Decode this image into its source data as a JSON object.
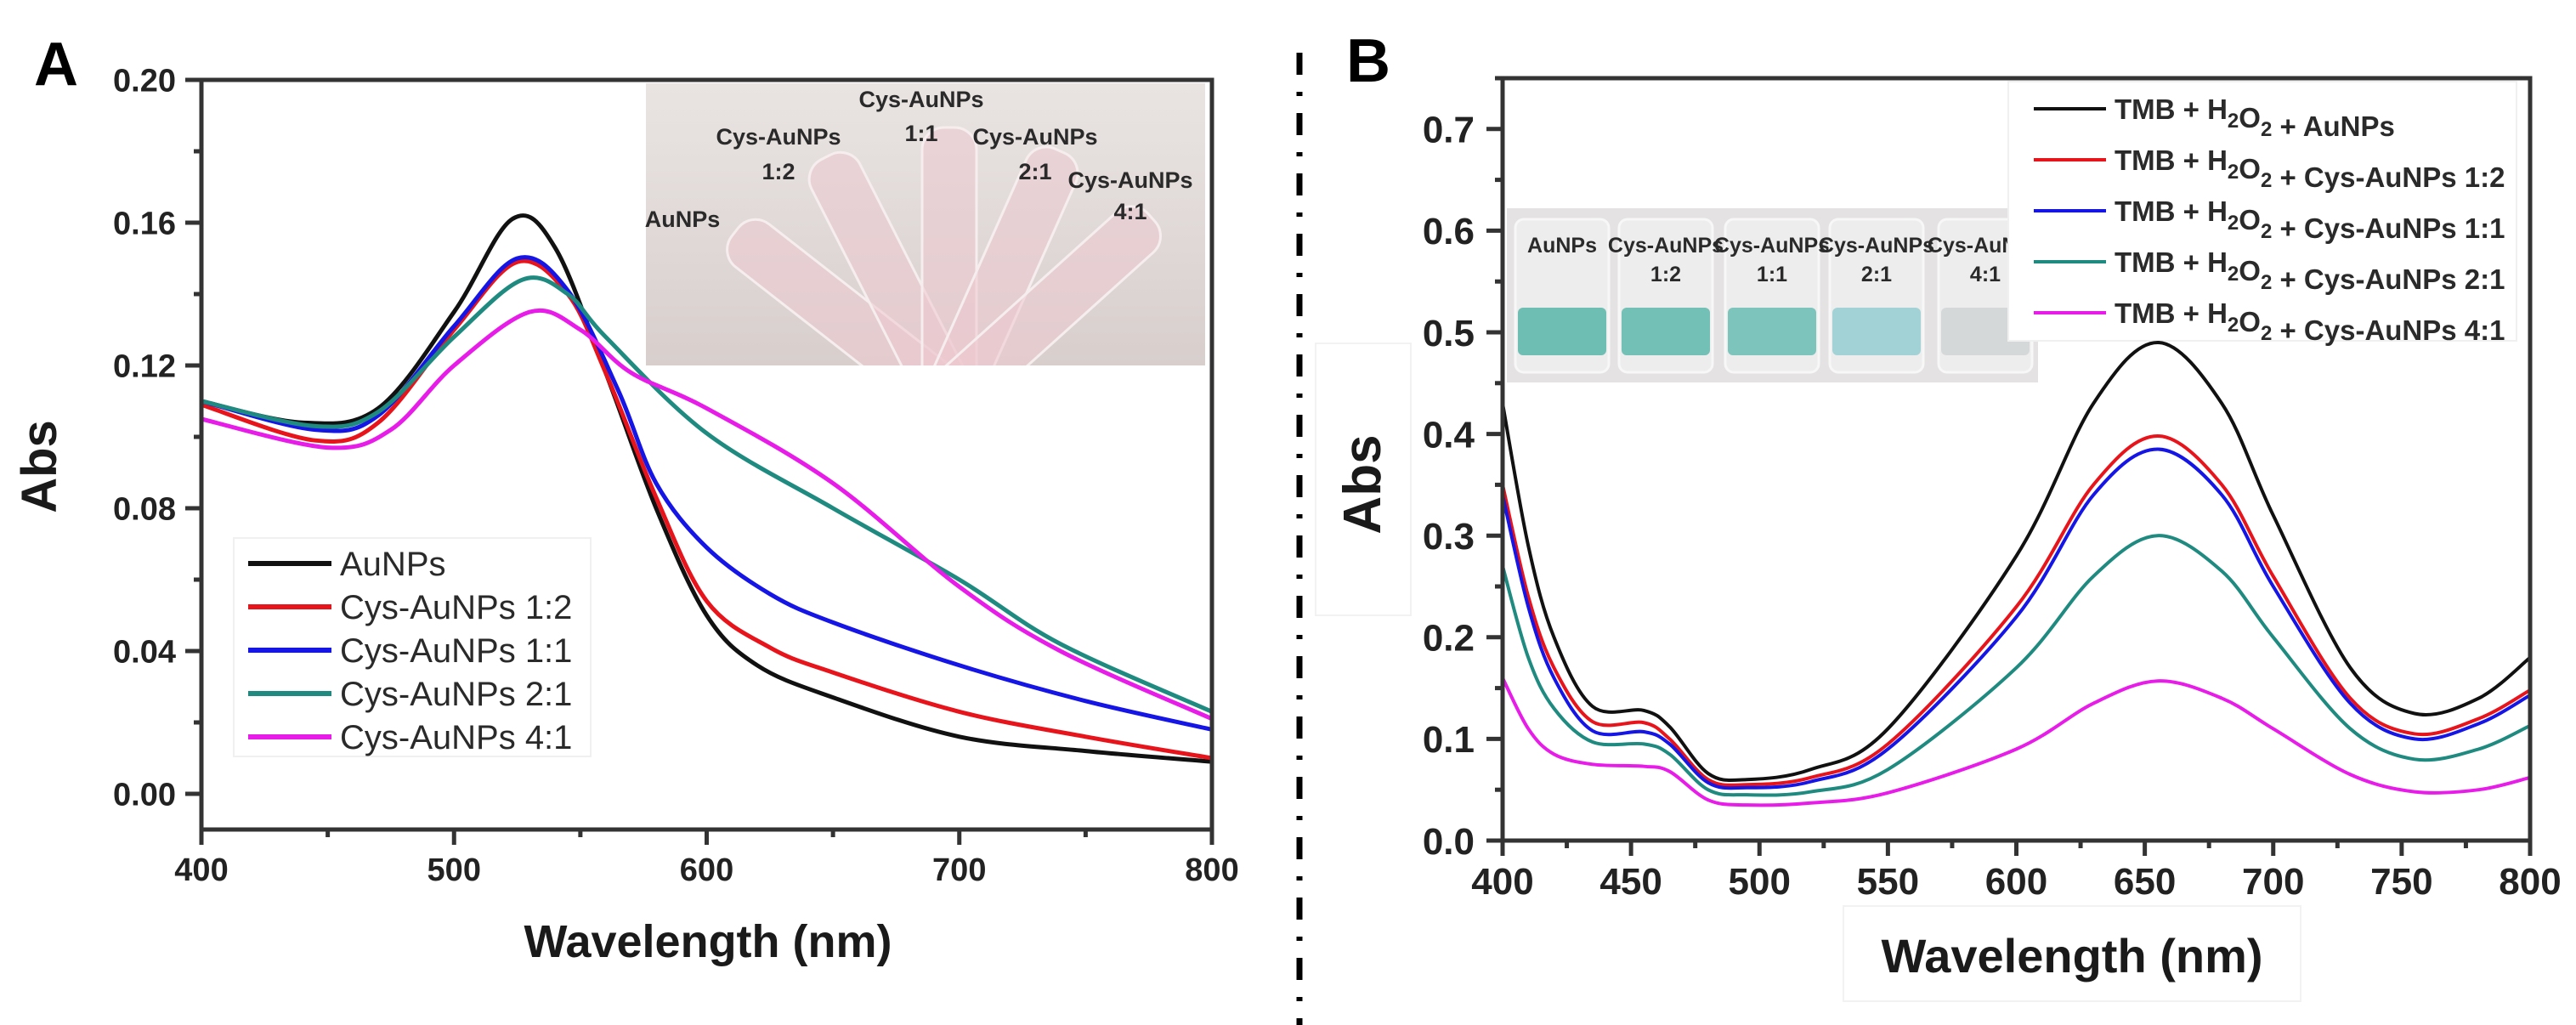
{
  "divider": {
    "style": "dash-dot"
  },
  "chart_data": [
    {
      "panel_label": "A",
      "type": "line",
      "title": "",
      "xlabel": "Wavelength (nm)",
      "ylabel": "Abs",
      "xlim": [
        400,
        800
      ],
      "ylim": [
        -0.01,
        0.2
      ],
      "x_ticks": [
        {
          "v": 400,
          "label": "400"
        },
        {
          "v": 500,
          "label": "500"
        },
        {
          "v": 600,
          "label": "600"
        },
        {
          "v": 700,
          "label": "700"
        },
        {
          "v": 800,
          "label": "800"
        }
      ],
      "x_minor_step": 50,
      "y_ticks": [
        {
          "v": 0,
          "label": "0.00"
        },
        {
          "v": 0.04,
          "label": "0.04"
        },
        {
          "v": 0.08,
          "label": "0.08"
        },
        {
          "v": 0.12,
          "label": "0.12"
        },
        {
          "v": 0.16,
          "label": "0.16"
        },
        {
          "v": 0.2,
          "label": "0.20"
        }
      ],
      "y_minor_step": 0.02,
      "grid": false,
      "legend_position": "lower-left",
      "series": [
        {
          "name": "AuNPs",
          "color": "#111111",
          "x": [
            400,
            440,
            470,
            500,
            523,
            540,
            560,
            580,
            600,
            620,
            650,
            700,
            750,
            800
          ],
          "y": [
            0.11,
            0.104,
            0.108,
            0.135,
            0.161,
            0.153,
            0.118,
            0.08,
            0.05,
            0.036,
            0.027,
            0.016,
            0.012,
            0.009
          ]
        },
        {
          "name": "Cys-AuNPs 1:2",
          "color": "#e8141b",
          "x": [
            400,
            445,
            470,
            500,
            525,
            545,
            560,
            580,
            600,
            625,
            650,
            700,
            750,
            800
          ],
          "y": [
            0.109,
            0.099,
            0.104,
            0.13,
            0.149,
            0.14,
            0.118,
            0.083,
            0.054,
            0.041,
            0.034,
            0.023,
            0.016,
            0.01
          ]
        },
        {
          "name": "Cys-AuNPs 1:1",
          "color": "#1515e6",
          "x": [
            400,
            445,
            470,
            500,
            525,
            545,
            565,
            580,
            600,
            625,
            650,
            700,
            750,
            800
          ],
          "y": [
            0.11,
            0.102,
            0.106,
            0.131,
            0.15,
            0.141,
            0.113,
            0.087,
            0.069,
            0.056,
            0.048,
            0.036,
            0.026,
            0.018
          ]
        },
        {
          "name": "Cys-AuNPs 2:1",
          "color": "#1f8a80",
          "x": [
            400,
            445,
            470,
            500,
            527,
            545,
            560,
            600,
            650,
            700,
            740,
            800
          ],
          "y": [
            0.11,
            0.103,
            0.107,
            0.128,
            0.144,
            0.14,
            0.128,
            0.101,
            0.08,
            0.06,
            0.042,
            0.023
          ]
        },
        {
          "name": "Cys-AuNPs 4:1",
          "color": "#e81ce8",
          "x": [
            400,
            450,
            475,
            500,
            530,
            550,
            570,
            600,
            650,
            700,
            740,
            800
          ],
          "y": [
            0.105,
            0.097,
            0.102,
            0.12,
            0.135,
            0.13,
            0.118,
            0.108,
            0.087,
            0.058,
            0.04,
            0.021
          ]
        }
      ],
      "inset": {
        "labels": [
          {
            "line1": "AuNPs",
            "line2": ""
          },
          {
            "line1": "Cys-AuNPs",
            "line2": "1:2"
          },
          {
            "line1": "Cys-AuNPs",
            "line2": "1:1"
          },
          {
            "line1": "Cys-AuNPs",
            "line2": "2:1"
          },
          {
            "line1": "Cys-AuNPs",
            "line2": "4:1"
          }
        ]
      }
    },
    {
      "panel_label": "B",
      "type": "line",
      "title": "",
      "xlabel": "Wavelength (nm)",
      "ylabel": "Abs",
      "xlim": [
        400,
        800
      ],
      "ylim": [
        0.0,
        0.75
      ],
      "x_ticks": [
        {
          "v": 400,
          "label": "400"
        },
        {
          "v": 450,
          "label": "450"
        },
        {
          "v": 500,
          "label": "500"
        },
        {
          "v": 550,
          "label": "550"
        },
        {
          "v": 600,
          "label": "600"
        },
        {
          "v": 650,
          "label": "650"
        },
        {
          "v": 700,
          "label": "700"
        },
        {
          "v": 750,
          "label": "750"
        },
        {
          "v": 800,
          "label": "800"
        }
      ],
      "x_minor_step": 25,
      "y_ticks": [
        {
          "v": 0,
          "label": "0.0"
        },
        {
          "v": 0.1,
          "label": "0.1"
        },
        {
          "v": 0.2,
          "label": "0.2"
        },
        {
          "v": 0.3,
          "label": "0.3"
        },
        {
          "v": 0.4,
          "label": "0.4"
        },
        {
          "v": 0.5,
          "label": "0.5"
        },
        {
          "v": 0.6,
          "label": "0.6"
        },
        {
          "v": 0.7,
          "label": "0.7"
        }
      ],
      "y_minor_step": 0.05,
      "grid": false,
      "legend_position": "top-right",
      "series": [
        {
          "name": "TMB + H₂O₂ + AuNPs",
          "color": "#111111",
          "x": [
            400,
            410,
            420,
            435,
            455,
            465,
            480,
            495,
            520,
            550,
            600,
            630,
            655,
            680,
            700,
            730,
            755,
            780,
            800
          ],
          "y": [
            0.43,
            0.29,
            0.2,
            0.132,
            0.128,
            0.112,
            0.066,
            0.06,
            0.07,
            0.11,
            0.28,
            0.43,
            0.49,
            0.43,
            0.32,
            0.17,
            0.125,
            0.14,
            0.18
          ]
        },
        {
          "name": "TMB + H₂O₂ + Cys-AuNPs 1:2",
          "color": "#e8141b",
          "x": [
            400,
            410,
            420,
            435,
            455,
            465,
            480,
            495,
            520,
            550,
            600,
            630,
            655,
            680,
            700,
            730,
            755,
            780,
            800
          ],
          "y": [
            0.35,
            0.24,
            0.17,
            0.117,
            0.116,
            0.1,
            0.06,
            0.055,
            0.062,
            0.095,
            0.23,
            0.35,
            0.398,
            0.35,
            0.26,
            0.14,
            0.105,
            0.12,
            0.148
          ]
        },
        {
          "name": "TMB + H₂O₂ + Cys-AuNPs 1:1",
          "color": "#1515e6",
          "x": [
            400,
            410,
            420,
            435,
            455,
            465,
            480,
            495,
            520,
            550,
            600,
            630,
            655,
            680,
            700,
            730,
            755,
            780,
            800
          ],
          "y": [
            0.34,
            0.23,
            0.16,
            0.108,
            0.107,
            0.095,
            0.057,
            0.052,
            0.058,
            0.09,
            0.22,
            0.34,
            0.385,
            0.34,
            0.25,
            0.135,
            0.1,
            0.115,
            0.143
          ]
        },
        {
          "name": "TMB + H₂O₂ + Cys-AuNPs 2:1",
          "color": "#1f8a80",
          "x": [
            400,
            410,
            420,
            435,
            455,
            465,
            480,
            495,
            520,
            550,
            600,
            630,
            655,
            680,
            700,
            730,
            755,
            780,
            800
          ],
          "y": [
            0.27,
            0.18,
            0.13,
            0.097,
            0.095,
            0.085,
            0.05,
            0.045,
            0.048,
            0.07,
            0.17,
            0.26,
            0.3,
            0.265,
            0.2,
            0.11,
            0.08,
            0.09,
            0.113
          ]
        },
        {
          "name": "TMB + H₂O₂ + Cys-AuNPs 4:1",
          "color": "#e81ce8",
          "x": [
            400,
            410,
            420,
            435,
            455,
            465,
            480,
            495,
            520,
            550,
            600,
            630,
            655,
            680,
            700,
            730,
            755,
            780,
            800
          ],
          "y": [
            0.16,
            0.11,
            0.085,
            0.075,
            0.073,
            0.068,
            0.04,
            0.035,
            0.037,
            0.047,
            0.09,
            0.135,
            0.157,
            0.14,
            0.11,
            0.065,
            0.048,
            0.05,
            0.062
          ]
        }
      ],
      "inset": {
        "labels": [
          {
            "line1": "AuNPs",
            "line2": ""
          },
          {
            "line1": "Cys-AuNPs",
            "line2": "1:2"
          },
          {
            "line1": "Cys-AuNPs",
            "line2": "1:1"
          },
          {
            "line1": "Cys-AuNPs",
            "line2": "2:1"
          },
          {
            "line1": "Cys-AuNPs",
            "line2": "4:1"
          }
        ],
        "liquid_colors": [
          "#6fbeb3",
          "#73c0b6",
          "#7cc4bc",
          "#a3d2d6",
          "#d4d8d8"
        ]
      }
    }
  ]
}
